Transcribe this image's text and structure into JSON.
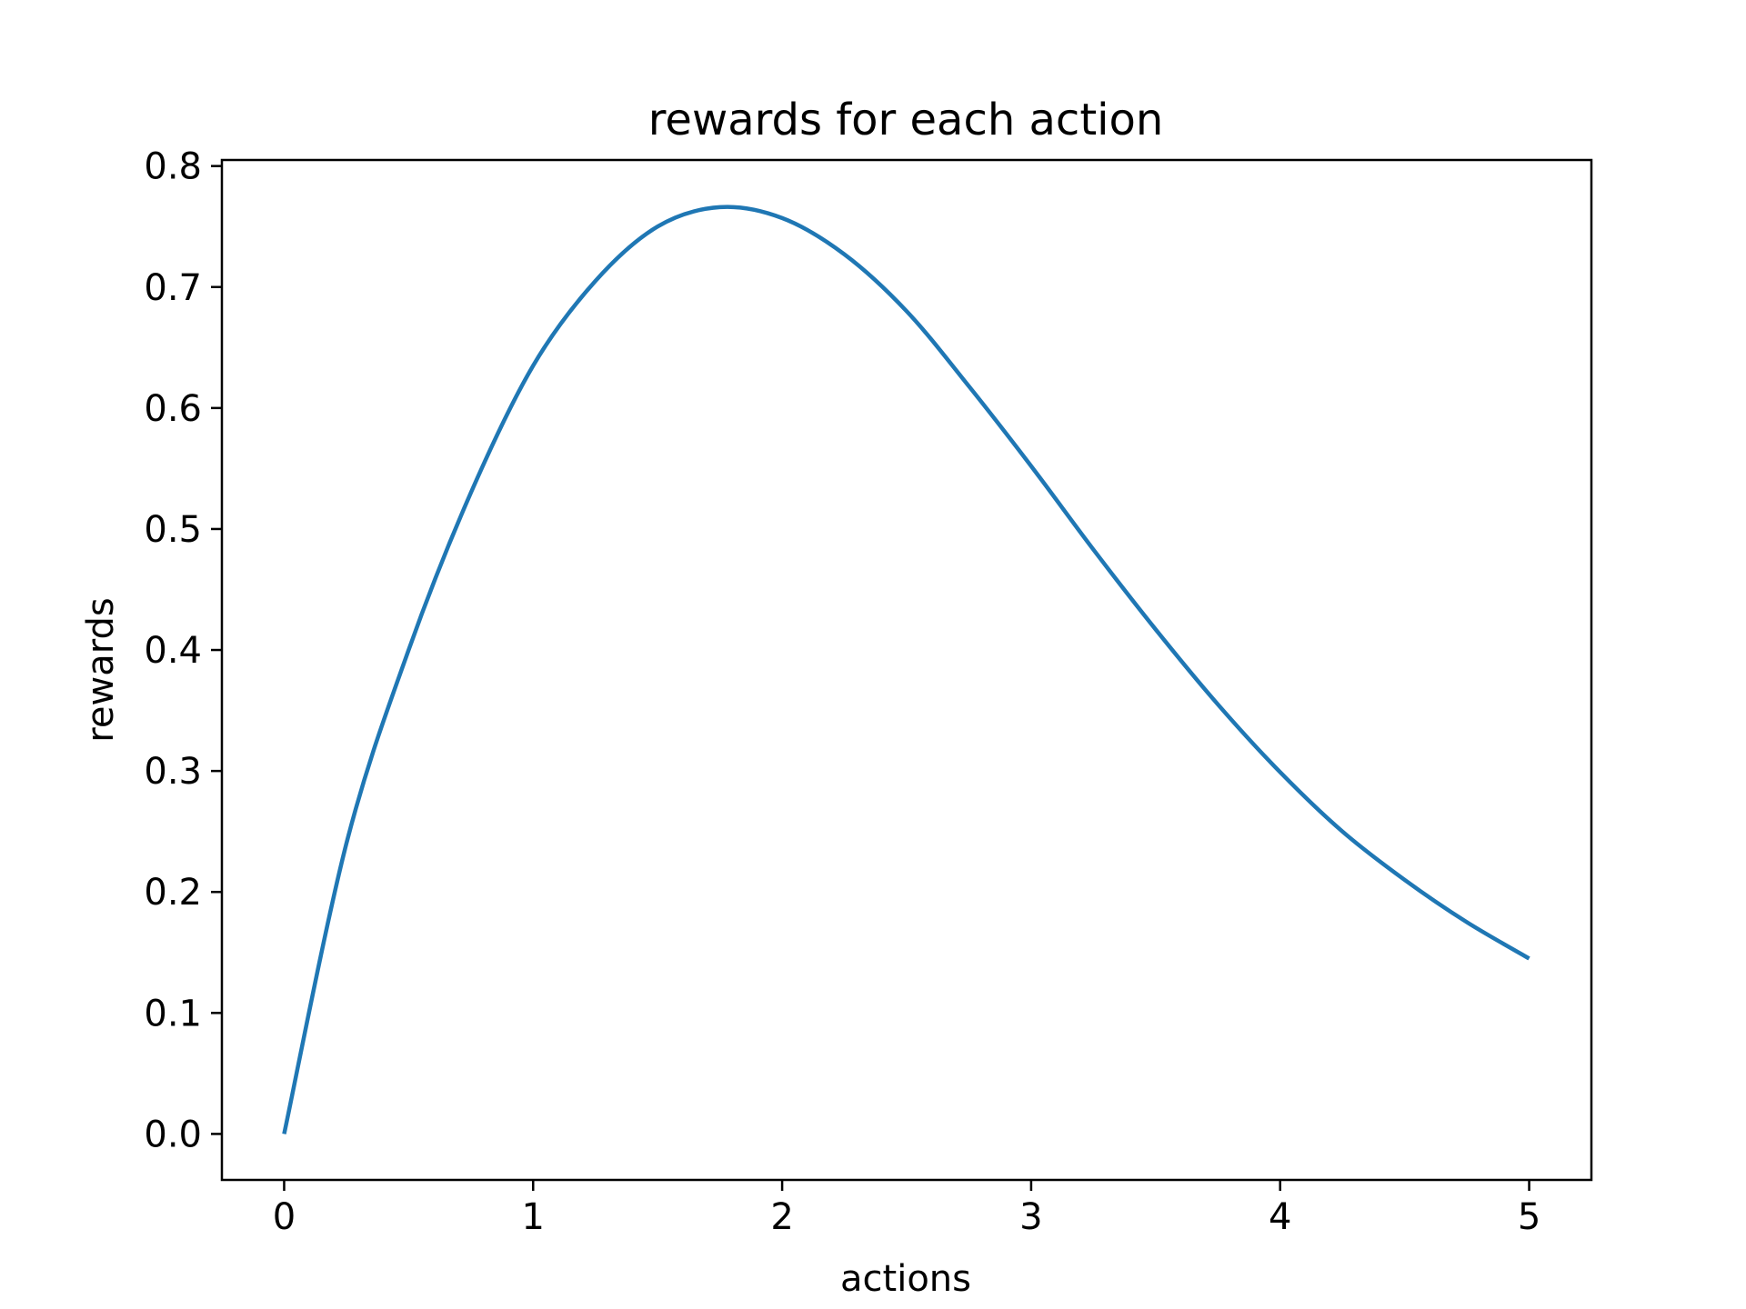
{
  "chart_data": {
    "type": "line",
    "title": "rewards for each action",
    "xlabel": "actions",
    "ylabel": "rewards",
    "xlim": [
      -0.25,
      5.25
    ],
    "ylim": [
      -0.038,
      0.805
    ],
    "x_ticks": [
      "0",
      "1",
      "2",
      "3",
      "4",
      "5"
    ],
    "y_ticks": [
      "0.0",
      "0.1",
      "0.2",
      "0.3",
      "0.4",
      "0.5",
      "0.6",
      "0.7",
      "0.8"
    ],
    "grid": false,
    "line_color": "#1f77b4",
    "series": [
      {
        "x": [
          0,
          0.25,
          0.5,
          0.75,
          1,
          1.25,
          1.5,
          1.75,
          2,
          2.25,
          2.5,
          2.75,
          3,
          3.25,
          3.5,
          3.75,
          4,
          4.25,
          4.5,
          4.75,
          5
        ],
        "values": [
          0.0,
          0.24,
          0.4,
          0.53,
          0.635,
          0.705,
          0.75,
          0.766,
          0.757,
          0.727,
          0.68,
          0.618,
          0.552,
          0.483,
          0.417,
          0.355,
          0.299,
          0.25,
          0.21,
          0.175,
          0.145
        ]
      }
    ]
  }
}
